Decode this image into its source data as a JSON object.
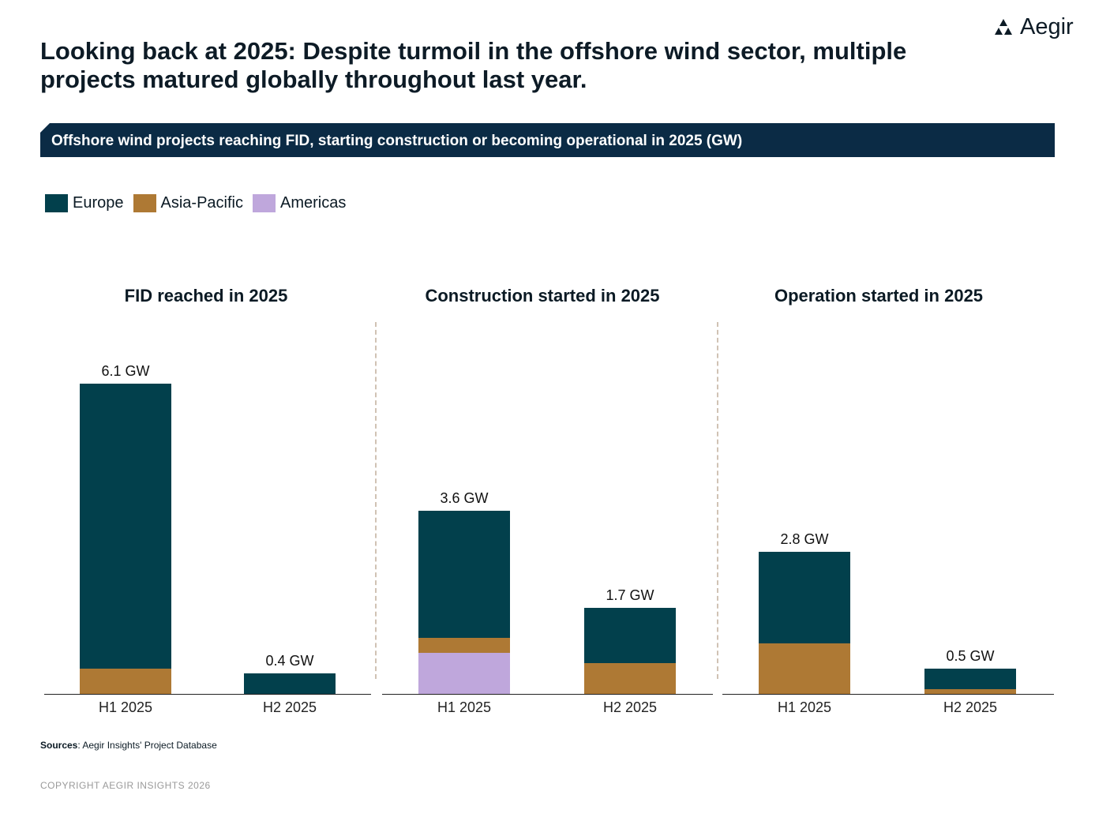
{
  "header": {
    "title": "Looking back at 2025: Despite turmoil in the offshore wind sector, multiple projects matured globally throughout last year.",
    "logo_text": "Aegir"
  },
  "chart_data": {
    "type": "bar",
    "stacked": true,
    "title": "Offshore wind projects reaching FID, starting construction or becoming operational in 2025 (GW)",
    "unit": "GW",
    "legend": [
      {
        "name": "Europe",
        "color": "#02404c"
      },
      {
        "name": "Asia-Pacific",
        "color": "#ae7934"
      },
      {
        "name": "Americas",
        "color": "#bfa7dc"
      }
    ],
    "legend_position": "top-left",
    "panels": [
      {
        "title": "FID reached in 2025",
        "categories": [
          "H1 2025",
          "H2 2025"
        ],
        "totals_labels": [
          "6.1 GW",
          "0.4 GW"
        ],
        "series": [
          {
            "name": "Europe",
            "values": [
              5.6,
              0.4
            ]
          },
          {
            "name": "Asia-Pacific",
            "values": [
              0.5,
              0
            ]
          },
          {
            "name": "Americas",
            "values": [
              0,
              0
            ]
          }
        ]
      },
      {
        "title": "Construction started in 2025",
        "categories": [
          "H1 2025",
          "H2 2025"
        ],
        "totals_labels": [
          "3.6 GW",
          "1.7 GW"
        ],
        "series": [
          {
            "name": "Europe",
            "values": [
              2.5,
              1.1
            ]
          },
          {
            "name": "Asia-Pacific",
            "values": [
              0.3,
              0.6
            ]
          },
          {
            "name": "Americas",
            "values": [
              0.8,
              0
            ]
          }
        ]
      },
      {
        "title": "Operation started in 2025",
        "categories": [
          "H1 2025",
          "H2 2025"
        ],
        "totals_labels": [
          "2.8 GW",
          "0.5 GW"
        ],
        "series": [
          {
            "name": "Europe",
            "values": [
              1.8,
              0.4
            ]
          },
          {
            "name": "Asia-Pacific",
            "values": [
              1.0,
              0.1
            ]
          },
          {
            "name": "Americas",
            "values": [
              0,
              0
            ]
          }
        ]
      }
    ],
    "ylim": [
      0,
      6.5
    ],
    "grid": false
  },
  "footer": {
    "sources_label": "Sources",
    "sources_text": ": Aegir Insights' Project Database",
    "copyright": "COPYRIGHT AEGIR INSIGHTS 2026"
  }
}
